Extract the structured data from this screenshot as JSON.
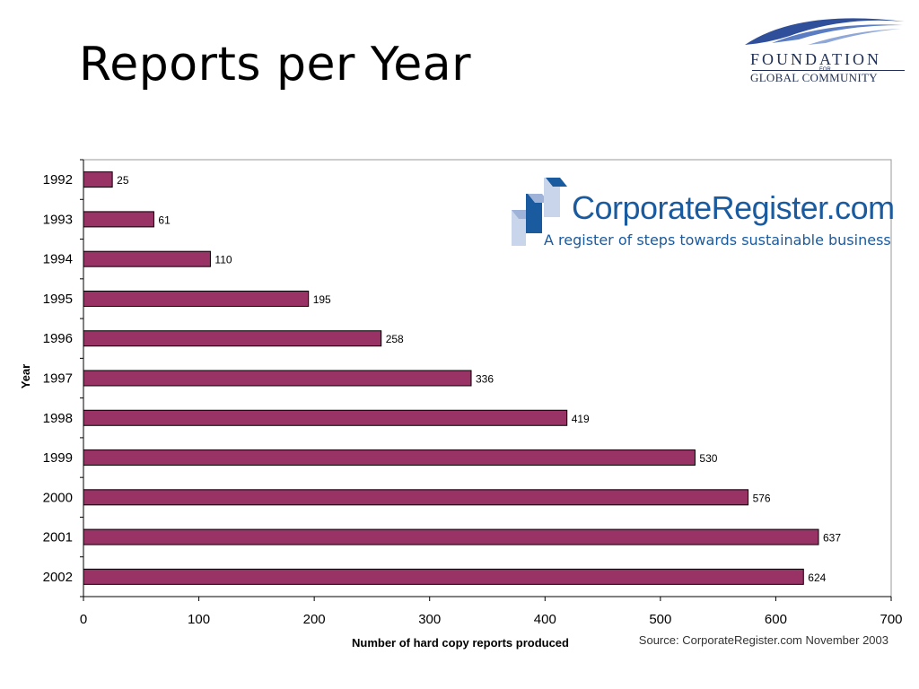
{
  "title": "Reports per Year",
  "logo_fgc": {
    "line1": "FOUNDATION",
    "for": "FOR",
    "line2": "GLOBAL COMMUNITY",
    "color": "#1f2f55",
    "icon": "swoosh-logo-icon"
  },
  "logo_cr": {
    "name": "CorporateRegister.com",
    "tagline": "A register of steps towards sustainable business",
    "color": "#1a5a9e",
    "icon": "steps-logo-icon"
  },
  "source": "Source: CorporateRegister.com November 2003",
  "chart_data": {
    "type": "bar",
    "orientation": "horizontal",
    "categories": [
      "1992",
      "1993",
      "1994",
      "1995",
      "1996",
      "1997",
      "1998",
      "1999",
      "2000",
      "2001",
      "2002"
    ],
    "values": [
      25,
      61,
      110,
      195,
      258,
      336,
      419,
      530,
      576,
      637,
      624
    ],
    "xlabel": "Number of hard copy reports produced",
    "ylabel": "Year",
    "xlim": [
      0,
      700
    ],
    "xticks": [
      0,
      100,
      200,
      300,
      400,
      500,
      600,
      700
    ],
    "bar_color": "#993366",
    "grid": false,
    "data_labels": true
  }
}
